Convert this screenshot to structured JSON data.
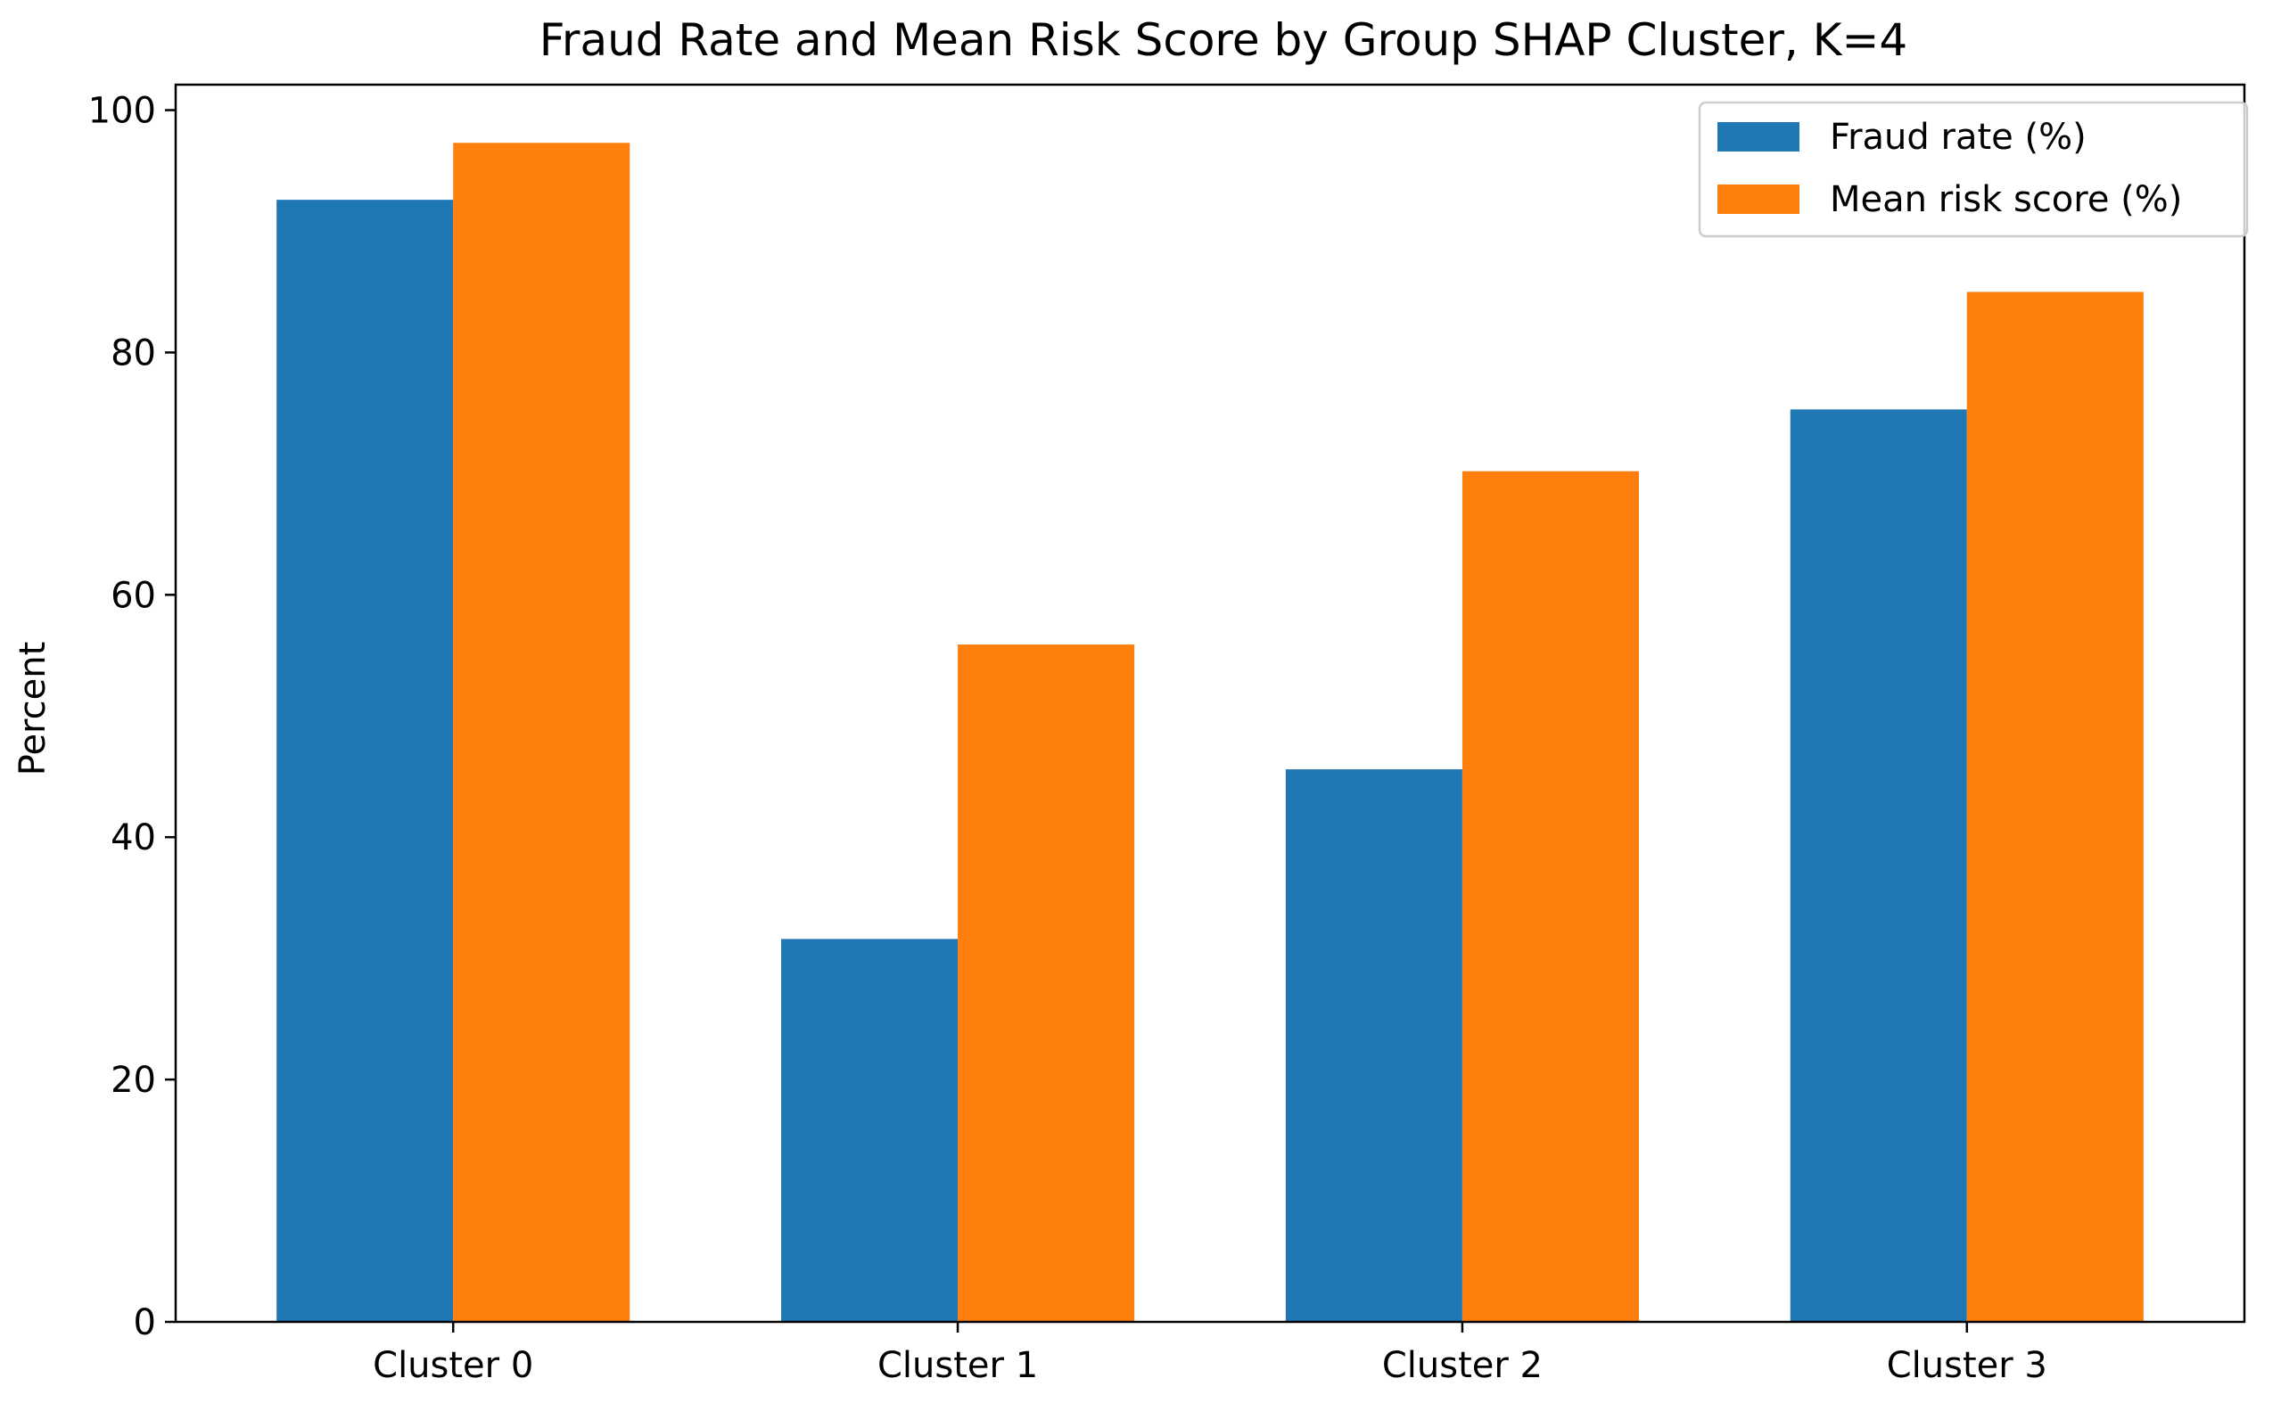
{
  "chart_data": {
    "type": "bar",
    "title": "Fraud Rate and Mean Risk Score by Group SHAP Cluster, K=4",
    "xlabel": "",
    "ylabel": "Percent",
    "categories": [
      "Cluster 0",
      "Cluster 1",
      "Cluster 2",
      "Cluster 3"
    ],
    "series": [
      {
        "name": "Fraud rate (%)",
        "values": [
          92.6,
          31.6,
          45.6,
          75.3
        ],
        "color": "#1f77b4"
      },
      {
        "name": "Mean risk score (%)",
        "values": [
          97.3,
          55.9,
          70.2,
          85.0
        ],
        "color": "#ff7f0e"
      }
    ],
    "ylim": [
      0,
      102.1
    ],
    "yticks": [
      "0",
      "20",
      "40",
      "60",
      "80",
      "100"
    ],
    "grid": false,
    "legend_position": "top-right"
  }
}
